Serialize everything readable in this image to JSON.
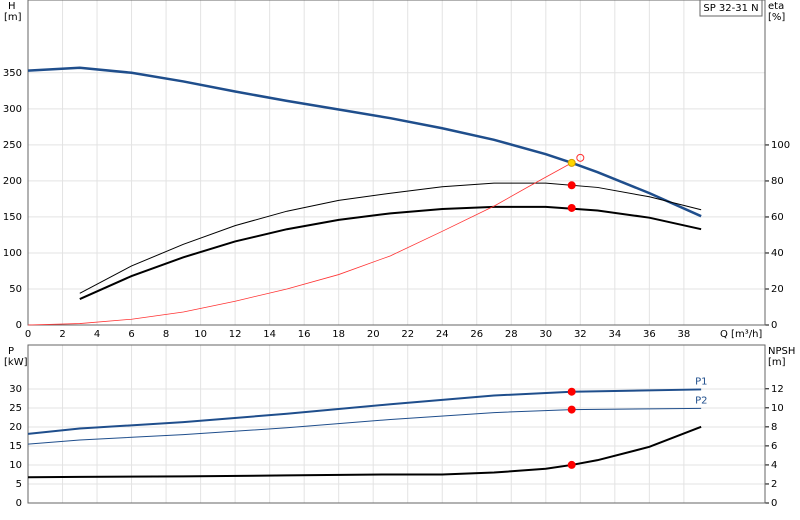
{
  "chart_data": [
    {
      "type": "line",
      "title": "SP 32-31 N",
      "ylabel": "H",
      "yunit": "[m]",
      "y2label": "eta",
      "y2unit": "[%]",
      "xlabel": "Q [m³/h]",
      "xlim": [
        0,
        42.7
      ],
      "xticks": [
        0,
        2,
        4,
        6,
        8,
        10,
        12,
        14,
        16,
        18,
        20,
        22,
        24,
        26,
        28,
        30,
        32,
        34,
        36,
        38
      ],
      "ylim": [
        0,
        451
      ],
      "yticks": [
        0,
        50,
        100,
        150,
        200,
        250,
        300,
        350
      ],
      "y2lim": [
        0,
        180.5
      ],
      "y2ticks": [
        0,
        20,
        40,
        60,
        80,
        100
      ],
      "grid": true,
      "series": [
        {
          "color": "#1f4e8c",
          "width": 2.5,
          "x": [
            0,
            3,
            6,
            9,
            12,
            15,
            18,
            21,
            24,
            27,
            30,
            31.5,
            33,
            36,
            39
          ],
          "values": [
            353,
            357,
            350,
            338,
            324,
            311,
            299,
            287,
            273,
            257,
            237,
            225,
            212,
            183,
            151
          ]
        },
        {
          "color": "#000000",
          "width": 1,
          "axis": "y2",
          "x": [
            3,
            6,
            9,
            12,
            15,
            18,
            21,
            24,
            27,
            30,
            33,
            36,
            39
          ],
          "values": [
            17.6,
            32.8,
            44.8,
            55.2,
            63.2,
            69.2,
            73.2,
            76.8,
            78.8,
            78.8,
            76.4,
            71.2,
            64
          ]
        },
        {
          "color": "#000000",
          "width": 2,
          "axis": "y2",
          "x": [
            3,
            6,
            9,
            12,
            15,
            18,
            21,
            24,
            27,
            30,
            33,
            36,
            39
          ],
          "values": [
            14.4,
            27.2,
            37.6,
            46.4,
            53.2,
            58.4,
            62,
            64.4,
            65.6,
            65.6,
            63.6,
            59.6,
            53.2
          ]
        },
        {
          "color": "#ff3333",
          "width": 0.8,
          "x": [
            0,
            3,
            6,
            9,
            12,
            15,
            18,
            21,
            24,
            27,
            29,
            31.5
          ],
          "values": [
            0,
            2,
            8,
            18,
            33,
            50,
            70,
            96,
            130,
            165,
            192,
            225
          ]
        }
      ],
      "markers": [
        {
          "x": 31.5,
          "value": 225,
          "color": "#ffd700"
        },
        {
          "x": 32,
          "value": 232,
          "color": "none"
        },
        {
          "x": 31.5,
          "value": 77.6,
          "color": "#ff0000",
          "axis": "y2"
        },
        {
          "x": 31.5,
          "value": 65,
          "color": "#ff0000",
          "axis": "y2"
        }
      ]
    },
    {
      "type": "line",
      "ylabel": "P",
      "yunit": "[kW]",
      "y2label": "NPSH",
      "y2unit": "[m]",
      "xlim": [
        0,
        42.7
      ],
      "xticks": [
        0,
        2,
        4,
        6,
        8,
        10,
        12,
        14,
        16,
        18,
        20,
        22,
        24,
        26,
        28,
        30,
        32,
        34,
        36,
        38
      ],
      "ylim": [
        0,
        41.6
      ],
      "yticks": [
        0,
        5,
        10,
        15,
        20,
        25,
        30
      ],
      "y2lim": [
        0,
        16.6
      ],
      "y2ticks": [
        0,
        2,
        4,
        6,
        8,
        10,
        12
      ],
      "grid": true,
      "series": [
        {
          "name": "P1",
          "color": "#1f4e8c",
          "width": 2,
          "x": [
            0,
            3,
            9,
            15,
            21,
            27,
            31.5,
            39
          ],
          "values": [
            18.2,
            19.6,
            21.3,
            23.5,
            26,
            28.3,
            29.3,
            29.9
          ]
        },
        {
          "name": "P2",
          "color": "#1f4e8c",
          "width": 1,
          "x": [
            0,
            3,
            9,
            15,
            21,
            27,
            31.5,
            39
          ],
          "values": [
            15.5,
            16.6,
            18,
            19.8,
            22,
            23.8,
            24.6,
            24.9
          ]
        },
        {
          "color": "#000000",
          "width": 2,
          "axis": "y2",
          "x": [
            0,
            3,
            9,
            15,
            21,
            24,
            27,
            30,
            31.5,
            33,
            36,
            39
          ],
          "values": [
            2.7,
            2.75,
            2.8,
            2.9,
            3.0,
            3.0,
            3.2,
            3.6,
            4.0,
            4.5,
            5.9,
            8
          ]
        }
      ],
      "markers": [
        {
          "x": 31.5,
          "value": 29.3,
          "color": "#ff0000"
        },
        {
          "x": 31.5,
          "value": 24.6,
          "color": "#ff0000"
        },
        {
          "x": 31.5,
          "value": 4.0,
          "color": "#ff0000",
          "axis": "y2"
        }
      ]
    }
  ]
}
